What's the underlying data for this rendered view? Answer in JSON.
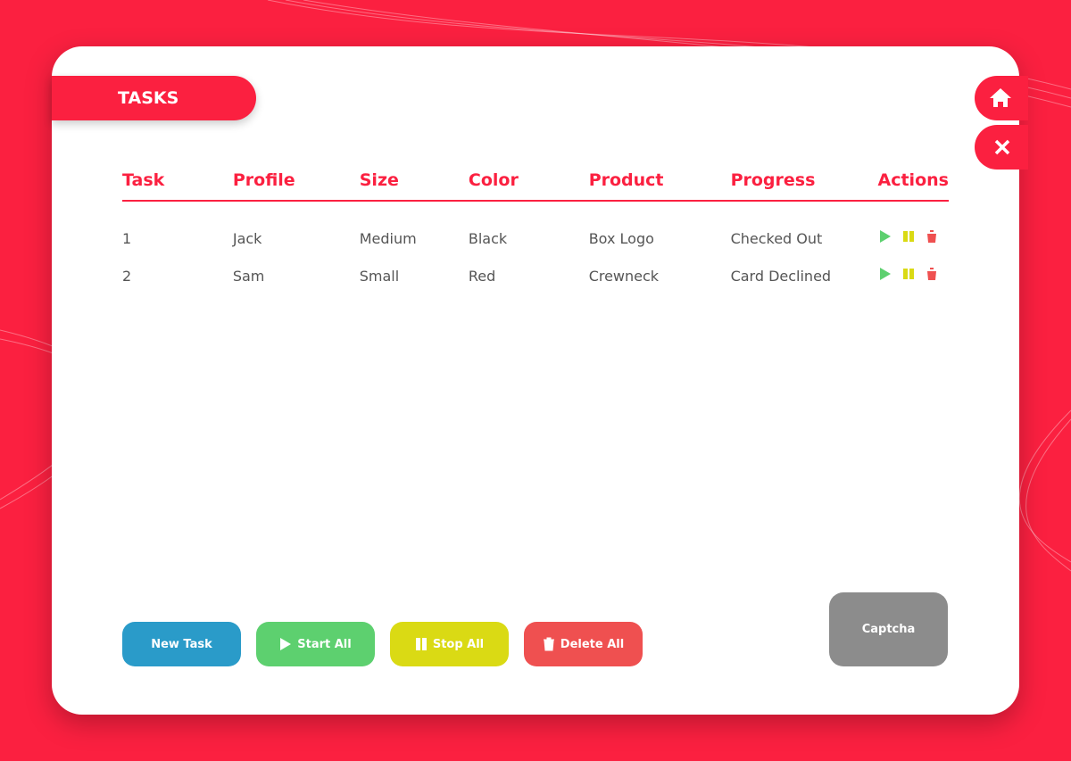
{
  "header": {
    "title": "TASKS"
  },
  "table": {
    "columns": [
      "Task",
      "Profile",
      "Size",
      "Color",
      "Product",
      "Progress",
      "Actions"
    ],
    "rows": [
      [
        "1",
        "Jack",
        "Medium",
        "Black",
        "Box Logo",
        "Checked Out"
      ],
      [
        "2",
        "Sam",
        "Small",
        "Red",
        "Crewneck",
        "Card Declined"
      ]
    ]
  },
  "buttons": [
    "New Task",
    "Start All",
    "Stop All",
    "Delete All",
    "Captcha"
  ]
}
